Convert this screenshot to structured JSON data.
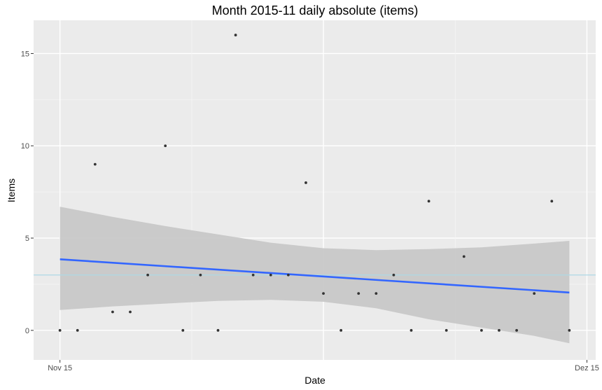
{
  "chart_data": {
    "type": "scatter",
    "title": "Month 2015-11 daily absolute (items)",
    "xlabel": "Date",
    "ylabel": "Items",
    "x_tick_labels": [
      "Nov 15",
      "Dez 15"
    ],
    "x_tick_values": [
      0,
      30
    ],
    "y_tick_labels": [
      "0",
      "5",
      "10",
      "15"
    ],
    "y_tick_values": [
      0,
      5,
      10,
      15
    ],
    "xlim": [
      -1.5,
      30.5
    ],
    "ylim": [
      -1.6,
      16.8
    ],
    "grid": true,
    "legend": "none",
    "points": [
      {
        "x": 0,
        "y": 0
      },
      {
        "x": 1,
        "y": 0
      },
      {
        "x": 2,
        "y": 9
      },
      {
        "x": 3,
        "y": 1
      },
      {
        "x": 4,
        "y": 1
      },
      {
        "x": 5,
        "y": 3
      },
      {
        "x": 6,
        "y": 10
      },
      {
        "x": 7,
        "y": 0
      },
      {
        "x": 8,
        "y": 3
      },
      {
        "x": 9,
        "y": 0
      },
      {
        "x": 10,
        "y": 16
      },
      {
        "x": 11,
        "y": 3
      },
      {
        "x": 12,
        "y": 3
      },
      {
        "x": 13,
        "y": 3
      },
      {
        "x": 14,
        "y": 8
      },
      {
        "x": 15,
        "y": 2
      },
      {
        "x": 16,
        "y": 0
      },
      {
        "x": 17,
        "y": 2
      },
      {
        "x": 18,
        "y": 2
      },
      {
        "x": 19,
        "y": 3
      },
      {
        "x": 20,
        "y": 0
      },
      {
        "x": 21,
        "y": 7
      },
      {
        "x": 22,
        "y": 0
      },
      {
        "x": 23,
        "y": 4
      },
      {
        "x": 24,
        "y": 0
      },
      {
        "x": 25,
        "y": 0
      },
      {
        "x": 26,
        "y": 0
      },
      {
        "x": 27,
        "y": 2
      },
      {
        "x": 28,
        "y": 7
      },
      {
        "x": 29,
        "y": 0
      }
    ],
    "trend_line": {
      "x": [
        0,
        29
      ],
      "y": [
        3.85,
        2.05
      ],
      "color": "#3366ff"
    },
    "confidence_band": {
      "x": [
        0,
        3,
        6,
        9,
        12,
        15,
        18,
        21,
        24,
        27,
        29
      ],
      "upper": [
        6.7,
        6.15,
        5.65,
        5.2,
        4.75,
        4.45,
        4.35,
        4.4,
        4.5,
        4.7,
        4.85
      ],
      "lower": [
        1.1,
        1.3,
        1.45,
        1.6,
        1.65,
        1.55,
        1.2,
        0.6,
        0.15,
        -0.3,
        -0.7
      ],
      "color": "#c8c8c8"
    },
    "reference_line": {
      "y": 3,
      "color": "#add8e6"
    },
    "point_color": "#333333",
    "panel_color": "#ebebeb"
  }
}
